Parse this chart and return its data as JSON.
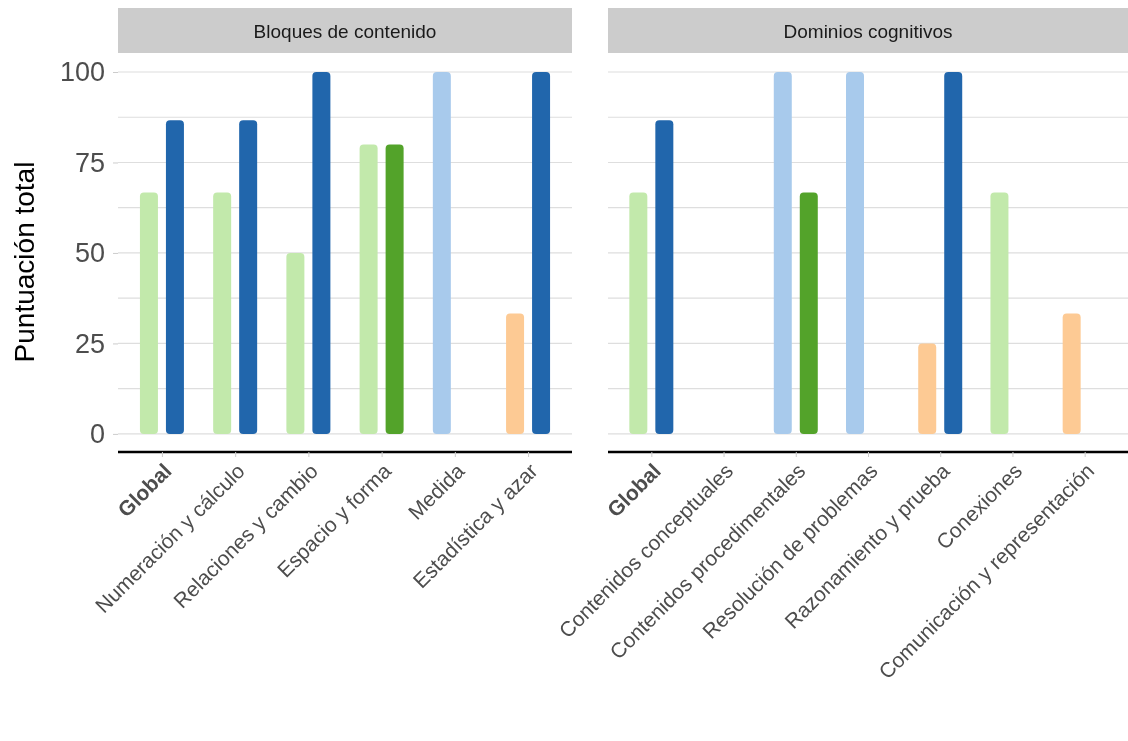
{
  "chart_data": [
    {
      "type": "bar",
      "title": "Bloques de contenido",
      "ylabel": "Puntuación total",
      "categories": [
        "Global",
        "Numeración y cálculo",
        "Relaciones y cambio",
        "Espacio y forma",
        "Medida",
        "Estadística y azar"
      ],
      "series": [
        {
          "values": [
            66.7,
            66.7,
            50,
            80,
            100,
            33.3
          ],
          "colors": [
            "#c2e9ab",
            "#c2e9ab",
            "#c2e9ab",
            "#c2e9ab",
            "#a8caec",
            "#fdca94"
          ]
        },
        {
          "values": [
            86.7,
            86.7,
            100,
            80,
            null,
            100
          ],
          "colors": [
            "#2166ac",
            "#2166ac",
            "#2166ac",
            "#53a32a",
            null,
            "#2166ac"
          ]
        }
      ],
      "ylim": [
        -5,
        100
      ],
      "yticks": [
        0,
        {
          "value": 12.5,
          "label": null
        },
        25,
        {
          "value": 37.5,
          "label": null
        },
        50,
        {
          "value": 62.5,
          "label": null
        },
        75,
        {
          "value": 87.5,
          "label": null
        },
        100
      ],
      "grid": "y"
    },
    {
      "type": "bar",
      "title": "Dominios cognitivos",
      "categories": [
        "Global",
        "Contenidos conceptuales",
        "Contenidos procedimentales",
        "Resolución de problemas",
        "Razonamiento y prueba",
        "Conexiones",
        "Comunicación y representación"
      ],
      "series": [
        {
          "values": [
            66.7,
            null,
            100,
            100,
            25,
            66.7,
            33.3
          ],
          "colors": [
            "#c2e9ab",
            null,
            "#a8caec",
            "#a8caec",
            "#fdca94",
            "#c2e9ab",
            "#fdca94"
          ]
        },
        {
          "values": [
            86.7,
            null,
            66.7,
            null,
            100,
            null,
            null
          ],
          "colors": [
            "#2166ac",
            null,
            "#53a32a",
            null,
            "#2166ac",
            null,
            null
          ]
        }
      ],
      "ylim": [
        -5,
        100
      ],
      "yticks": [
        0,
        {
          "value": 12.5,
          "label": null
        },
        25,
        {
          "value": 37.5,
          "label": null
        },
        50,
        {
          "value": 62.5,
          "label": null
        },
        75,
        {
          "value": 87.5,
          "label": null
        },
        100
      ],
      "grid": "y",
      "tick_labels": "x"
    }
  ]
}
